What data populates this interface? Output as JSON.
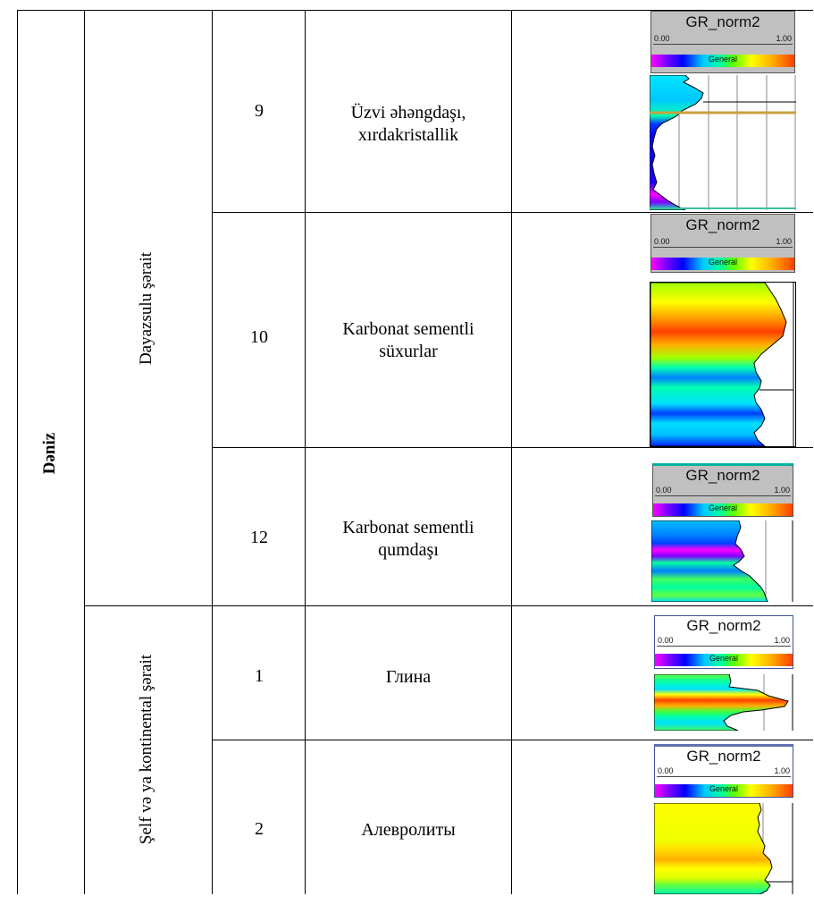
{
  "environment": "Dəniz",
  "subgroups": [
    {
      "label": "Dayazsulu şərait"
    },
    {
      "label": "Şelf və ya kontinental şərait"
    }
  ],
  "rows": [
    {
      "number": "9",
      "description": [
        "Üzvi əhəngdaşı,",
        "xırdakristallik"
      ]
    },
    {
      "number": "10",
      "description": [
        "Karbonat sementli",
        "süxurlar"
      ]
    },
    {
      "number": "12",
      "description": [
        "Karbonat sementli",
        "qumdaşı"
      ]
    },
    {
      "number": "1",
      "description": [
        "Глина"
      ]
    },
    {
      "number": "2",
      "description": [
        "Алевролиты"
      ]
    }
  ],
  "log_header": {
    "curve": "GR_norm2",
    "scale_min": "0.00",
    "scale_max": "1.00",
    "palette": "General"
  },
  "colors": {
    "gr_low": "#ff00ff",
    "gr_mid": "#00ffa0",
    "gr_high": "#ff4000",
    "marker_line": "#c8a040"
  }
}
